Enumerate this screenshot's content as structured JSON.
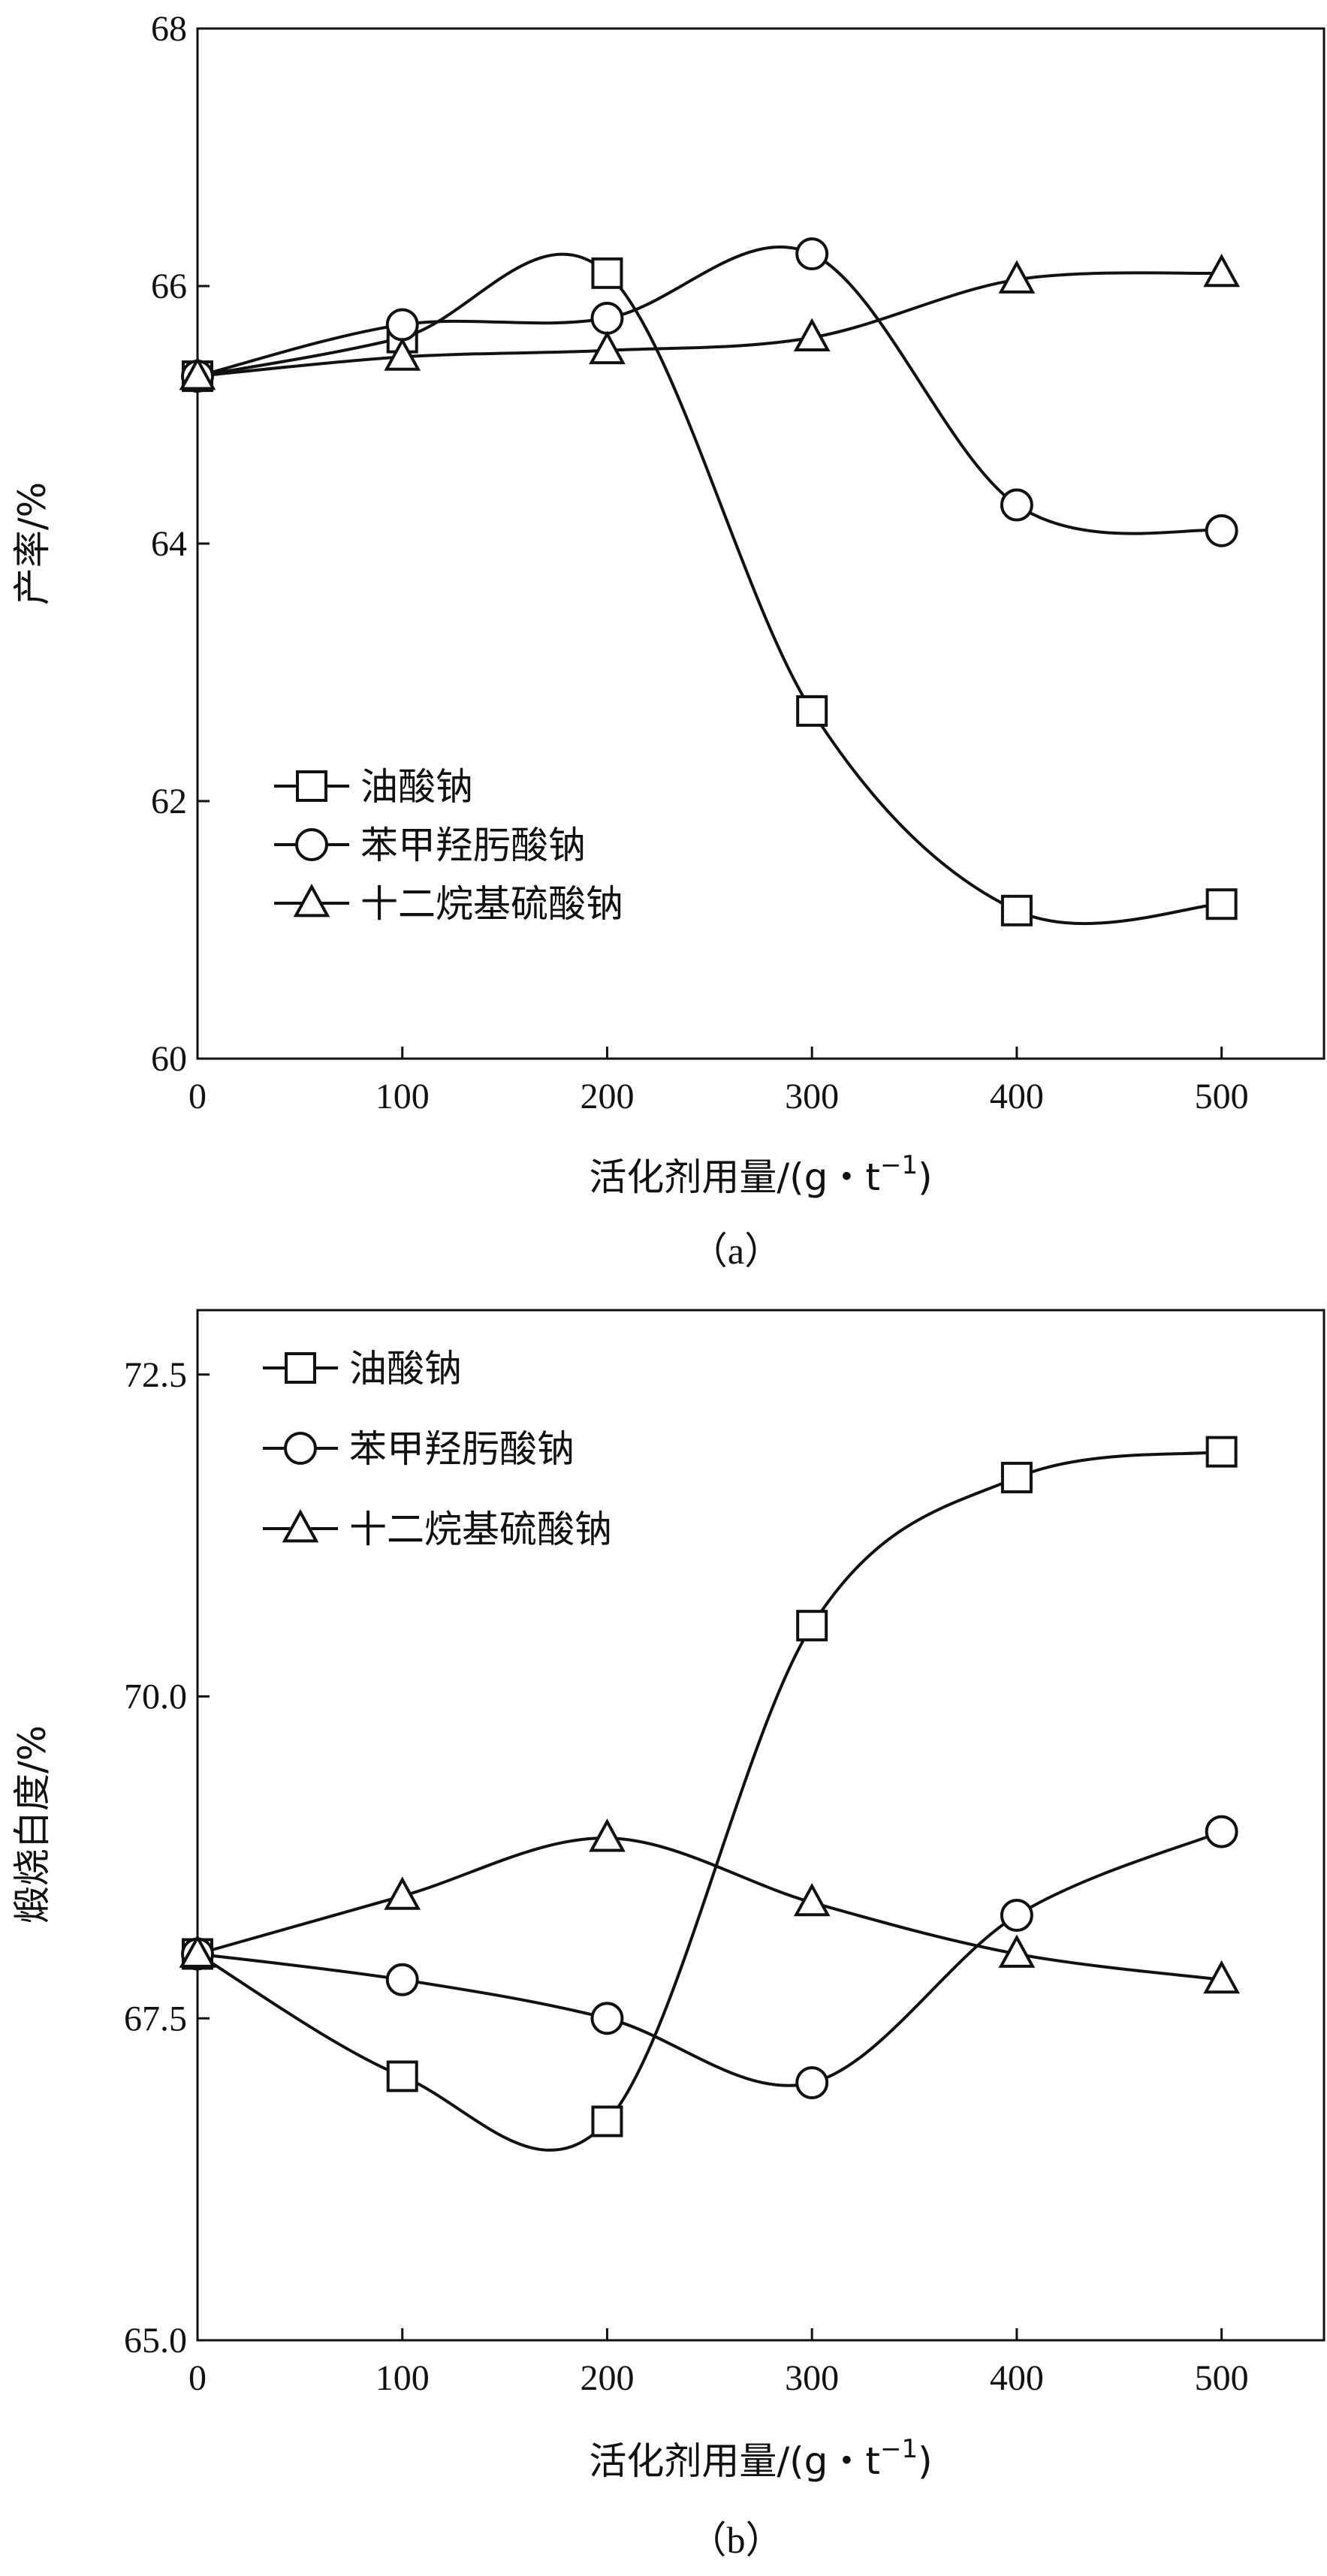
{
  "chart_data": [
    {
      "panel_label": "（a）",
      "type": "line",
      "xlabel": "活化剂用量/(g・t",
      "xlabel_sup": "−1",
      "xlabel_close": ")",
      "ylabel": "产率/%",
      "xlim": [
        0,
        550
      ],
      "ylim": [
        60,
        68
      ],
      "x_ticks": [
        0,
        100,
        200,
        300,
        400,
        500
      ],
      "y_ticks": [
        60,
        62,
        64,
        66,
        68
      ],
      "y_tick_labels": [
        "60",
        "62",
        "64",
        "66",
        "68"
      ],
      "grid": false,
      "legend_position": "lower-left",
      "x": [
        0,
        100,
        200,
        300,
        400,
        500
      ],
      "series": [
        {
          "name": "油酸钠",
          "marker": "square",
          "values": [
            65.3,
            65.6,
            66.1,
            62.7,
            61.15,
            61.2
          ]
        },
        {
          "name": "苯甲羟肟酸钠",
          "marker": "circle",
          "values": [
            65.3,
            65.7,
            65.75,
            66.25,
            64.3,
            64.1
          ]
        },
        {
          "name": "十二烷基硫酸钠",
          "marker": "triangle",
          "values": [
            65.3,
            65.45,
            65.5,
            65.6,
            66.05,
            66.1
          ]
        }
      ]
    },
    {
      "panel_label": "（b）",
      "type": "line",
      "xlabel": "活化剂用量/(g・t",
      "xlabel_sup": "−1",
      "xlabel_close": ")",
      "ylabel": "煅烧白度/%",
      "xlim": [
        0,
        550
      ],
      "ylim": [
        65.0,
        73.0
      ],
      "x_ticks": [
        0,
        100,
        200,
        300,
        400,
        500
      ],
      "y_ticks": [
        65.0,
        67.5,
        70.0,
        72.5
      ],
      "y_tick_labels": [
        "65.0",
        "67.5",
        "70.0",
        "72.5"
      ],
      "grid": false,
      "legend_position": "top-left",
      "x": [
        0,
        100,
        200,
        300,
        400,
        500
      ],
      "series": [
        {
          "name": "油酸钠",
          "marker": "square",
          "values": [
            68.0,
            67.05,
            66.7,
            70.55,
            71.7,
            71.9
          ]
        },
        {
          "name": "苯甲羟肟酸钠",
          "marker": "circle",
          "values": [
            68.0,
            67.8,
            67.5,
            67.0,
            68.3,
            68.95
          ]
        },
        {
          "name": "十二烷基硫酸钠",
          "marker": "triangle",
          "values": [
            68.0,
            68.45,
            68.9,
            68.4,
            68.0,
            67.8
          ]
        }
      ]
    }
  ]
}
